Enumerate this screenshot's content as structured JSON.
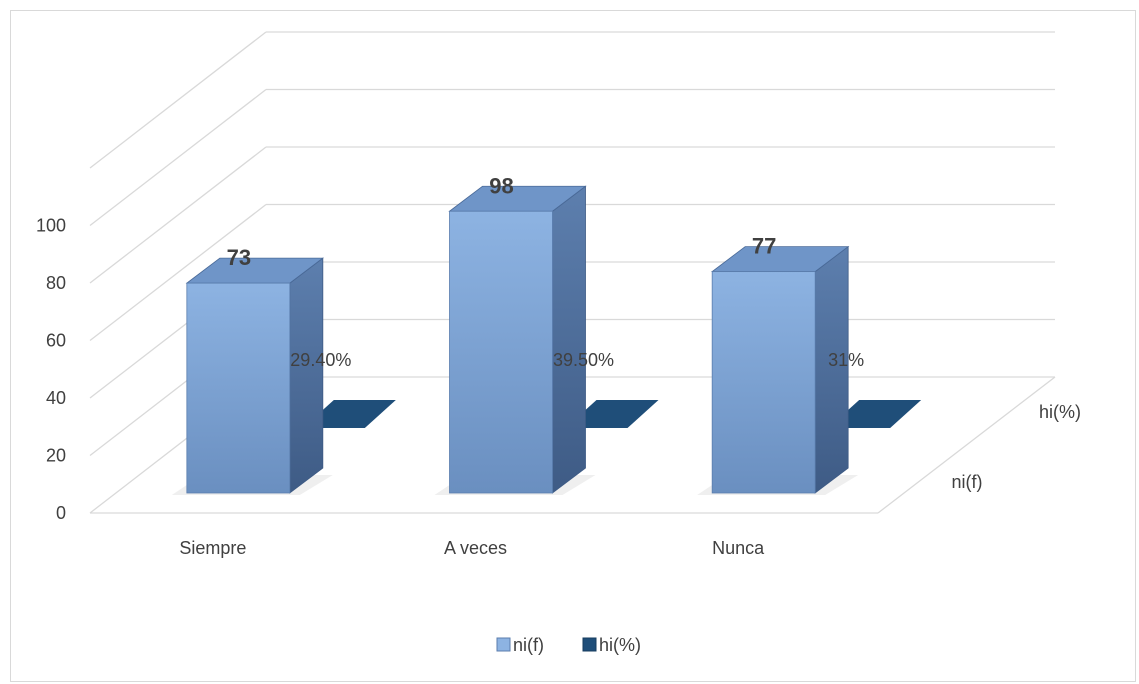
{
  "chart_data": {
    "type": "bar",
    "categories": [
      "Siempre",
      "A veces",
      "Nunca"
    ],
    "series": [
      {
        "name": "ni(f)",
        "values": [
          73,
          98,
          77
        ],
        "labels": [
          "73",
          "98",
          "77"
        ],
        "color": "#8db3e2"
      },
      {
        "name": "hi(%)",
        "values": [
          29.4,
          39.5,
          31
        ],
        "labels": [
          "29.40%",
          "39.50%",
          "31%"
        ],
        "color": "#1f4e79"
      }
    ],
    "yticks": [
      "0",
      "20",
      "40",
      "60",
      "80",
      "100"
    ],
    "ylim": [
      0,
      120
    ],
    "depth_axis": [
      "ni(f)",
      "hi(%)"
    ],
    "legend": [
      "ni(f)",
      "hi(%)"
    ],
    "legend_position": "bottom",
    "grid": true,
    "style": "3d-column"
  }
}
